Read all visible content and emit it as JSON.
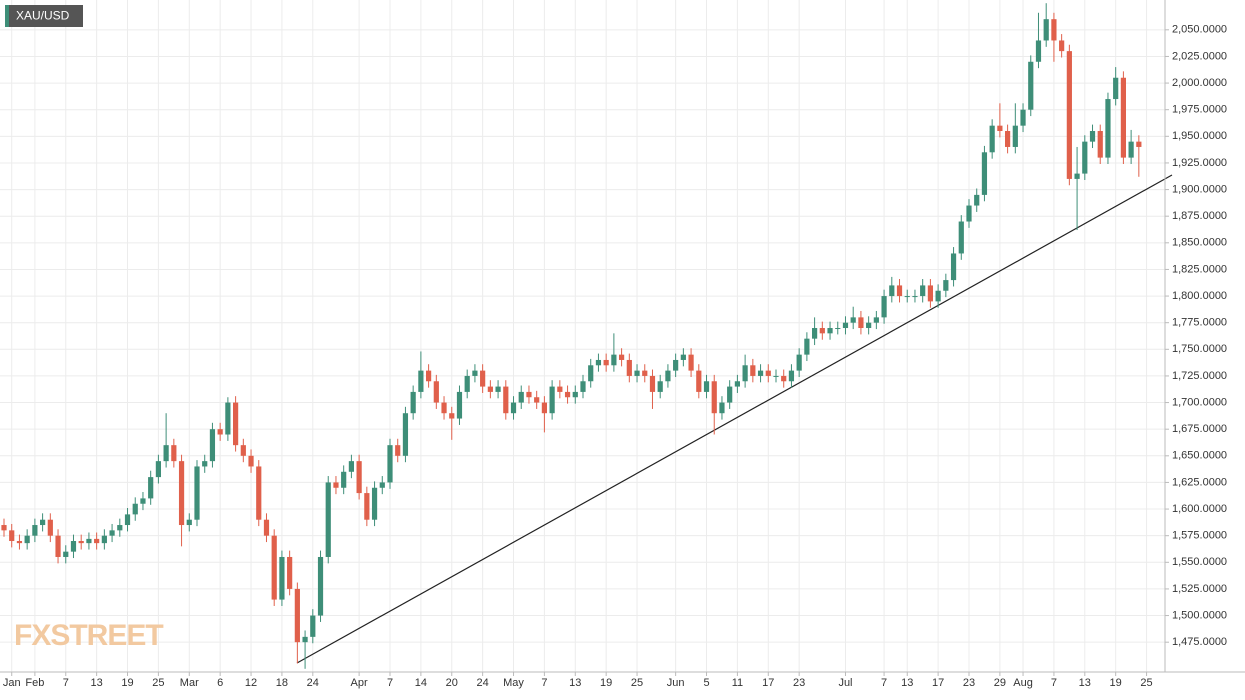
{
  "chart_data": {
    "type": "candlestick",
    "title": "XAU/USD",
    "watermark": "FXSTREET",
    "up_color": "#3e8e78",
    "down_color": "#e0604b",
    "grid": true,
    "open": [
      1585,
      1580,
      1570,
      1568,
      1575,
      1585,
      1590,
      1575,
      1555,
      1560,
      1570,
      1568,
      1572,
      1568,
      1575,
      1580,
      1585,
      1595,
      1605,
      1610,
      1630,
      1645,
      1660,
      1645,
      1585,
      1590,
      1640,
      1645,
      1675,
      1670,
      1700,
      1660,
      1650,
      1640,
      1590,
      1575,
      1515,
      1555,
      1525,
      1475,
      1480,
      1500,
      1555,
      1625,
      1620,
      1635,
      1645,
      1615,
      1590,
      1620,
      1625,
      1660,
      1650,
      1690,
      1710,
      1730,
      1720,
      1700,
      1690,
      1685,
      1710,
      1725,
      1730,
      1715,
      1710,
      1715,
      1690,
      1700,
      1710,
      1705,
      1700,
      1690,
      1715,
      1710,
      1705,
      1710,
      1720,
      1735,
      1740,
      1735,
      1745,
      1740,
      1725,
      1730,
      1725,
      1710,
      1720,
      1730,
      1740,
      1745,
      1730,
      1710,
      1720,
      1690,
      1700,
      1715,
      1720,
      1735,
      1725,
      1730,
      1725,
      1725,
      1720,
      1730,
      1745,
      1760,
      1770,
      1765,
      1770,
      1770,
      1775,
      1780,
      1770,
      1775,
      1780,
      1800,
      1810,
      1800,
      1800,
      1800,
      1810,
      1795,
      1805,
      1815,
      1840,
      1870,
      1885,
      1895,
      1935,
      1960,
      1955,
      1940,
      1960,
      1975,
      2020,
      2040,
      2060,
      2040,
      2030,
      1910,
      1915,
      1945,
      1955,
      1930,
      1985,
      2005,
      1930,
      1945
    ],
    "high": [
      1591,
      1586,
      1576,
      1581,
      1591,
      1596,
      1596,
      1581,
      1566,
      1576,
      1576,
      1578,
      1578,
      1581,
      1586,
      1591,
      1601,
      1611,
      1616,
      1636,
      1651,
      1690,
      1666,
      1651,
      1596,
      1646,
      1651,
      1681,
      1681,
      1705,
      1706,
      1666,
      1656,
      1646,
      1596,
      1581,
      1561,
      1561,
      1531,
      1486,
      1506,
      1561,
      1631,
      1631,
      1641,
      1651,
      1651,
      1621,
      1626,
      1631,
      1666,
      1666,
      1696,
      1716,
      1748,
      1736,
      1726,
      1706,
      1696,
      1716,
      1731,
      1736,
      1736,
      1721,
      1721,
      1721,
      1706,
      1716,
      1716,
      1711,
      1706,
      1721,
      1721,
      1716,
      1716,
      1726,
      1741,
      1746,
      1746,
      1765,
      1751,
      1746,
      1736,
      1736,
      1731,
      1726,
      1736,
      1746,
      1751,
      1751,
      1736,
      1726,
      1726,
      1706,
      1721,
      1726,
      1745,
      1741,
      1736,
      1736,
      1731,
      1731,
      1736,
      1751,
      1766,
      1780,
      1776,
      1776,
      1776,
      1781,
      1790,
      1786,
      1781,
      1786,
      1806,
      1818,
      1816,
      1806,
      1806,
      1816,
      1816,
      1811,
      1821,
      1846,
      1876,
      1891,
      1901,
      1941,
      1966,
      1981,
      1961,
      1981,
      1981,
      2026,
      2066,
      2075,
      2066,
      2046,
      2036,
      1940,
      1951,
      1961,
      1961,
      1991,
      2015,
      2011,
      1956,
      1951
    ],
    "low": [
      1574,
      1564,
      1562,
      1562,
      1569,
      1579,
      1569,
      1549,
      1549,
      1554,
      1562,
      1562,
      1562,
      1562,
      1569,
      1574,
      1579,
      1589,
      1599,
      1604,
      1624,
      1639,
      1639,
      1565,
      1579,
      1584,
      1634,
      1639,
      1664,
      1664,
      1654,
      1644,
      1634,
      1584,
      1569,
      1509,
      1509,
      1519,
      1455,
      1450,
      1474,
      1494,
      1549,
      1614,
      1614,
      1629,
      1609,
      1584,
      1584,
      1614,
      1619,
      1644,
      1644,
      1684,
      1704,
      1714,
      1694,
      1684,
      1665,
      1679,
      1704,
      1719,
      1709,
      1704,
      1704,
      1684,
      1684,
      1694,
      1699,
      1694,
      1672,
      1684,
      1704,
      1699,
      1699,
      1704,
      1714,
      1729,
      1729,
      1729,
      1734,
      1719,
      1719,
      1719,
      1694,
      1704,
      1714,
      1724,
      1734,
      1724,
      1704,
      1704,
      1670,
      1684,
      1694,
      1709,
      1714,
      1719,
      1719,
      1719,
      1719,
      1714,
      1714,
      1724,
      1739,
      1754,
      1759,
      1759,
      1764,
      1764,
      1769,
      1764,
      1764,
      1769,
      1774,
      1794,
      1794,
      1794,
      1794,
      1794,
      1789,
      1789,
      1799,
      1809,
      1834,
      1864,
      1879,
      1889,
      1929,
      1949,
      1934,
      1934,
      1954,
      1969,
      2014,
      2034,
      2020,
      2024,
      1904,
      1862,
      1909,
      1939,
      1924,
      1924,
      1979,
      1924,
      1924,
      1912
    ],
    "close": [
      1580,
      1570,
      1568,
      1575,
      1585,
      1590,
      1575,
      1555,
      1560,
      1570,
      1568,
      1572,
      1568,
      1575,
      1580,
      1585,
      1595,
      1605,
      1610,
      1630,
      1645,
      1660,
      1645,
      1585,
      1590,
      1640,
      1645,
      1675,
      1670,
      1700,
      1660,
      1650,
      1640,
      1590,
      1575,
      1515,
      1555,
      1525,
      1475,
      1480,
      1500,
      1555,
      1625,
      1620,
      1635,
      1645,
      1615,
      1590,
      1620,
      1625,
      1660,
      1650,
      1690,
      1710,
      1730,
      1720,
      1700,
      1690,
      1685,
      1710,
      1725,
      1730,
      1715,
      1710,
      1715,
      1690,
      1700,
      1710,
      1705,
      1700,
      1690,
      1715,
      1710,
      1705,
      1710,
      1720,
      1735,
      1740,
      1735,
      1745,
      1740,
      1725,
      1730,
      1725,
      1710,
      1720,
      1730,
      1740,
      1745,
      1730,
      1710,
      1720,
      1690,
      1700,
      1715,
      1720,
      1735,
      1725,
      1730,
      1725,
      1725,
      1720,
      1730,
      1745,
      1760,
      1770,
      1765,
      1770,
      1770,
      1775,
      1780,
      1770,
      1775,
      1780,
      1800,
      1810,
      1800,
      1800,
      1800,
      1810,
      1795,
      1805,
      1815,
      1840,
      1870,
      1885,
      1895,
      1935,
      1960,
      1955,
      1940,
      1960,
      1975,
      2020,
      2040,
      2060,
      2040,
      2030,
      1910,
      1915,
      1945,
      1955,
      1930,
      1985,
      2005,
      1930,
      1945,
      1940
    ],
    "xticks": [
      {
        "value": 1,
        "label": "Jan"
      },
      {
        "value": 4,
        "label": "Feb"
      },
      {
        "value": 8,
        "label": "7"
      },
      {
        "value": 12,
        "label": "13"
      },
      {
        "value": 16,
        "label": "19"
      },
      {
        "value": 20,
        "label": "25"
      },
      {
        "value": 24,
        "label": "Mar"
      },
      {
        "value": 28,
        "label": "6"
      },
      {
        "value": 32,
        "label": "12"
      },
      {
        "value": 36,
        "label": "18"
      },
      {
        "value": 40,
        "label": "24"
      },
      {
        "value": 46,
        "label": "Apr"
      },
      {
        "value": 50,
        "label": "7"
      },
      {
        "value": 54,
        "label": "14"
      },
      {
        "value": 58,
        "label": "20"
      },
      {
        "value": 62,
        "label": "24"
      },
      {
        "value": 66,
        "label": "May"
      },
      {
        "value": 70,
        "label": "7"
      },
      {
        "value": 74,
        "label": "13"
      },
      {
        "value": 78,
        "label": "19"
      },
      {
        "value": 82,
        "label": "25"
      },
      {
        "value": 87,
        "label": "Jun"
      },
      {
        "value": 91,
        "label": "5"
      },
      {
        "value": 95,
        "label": "11"
      },
      {
        "value": 99,
        "label": "17"
      },
      {
        "value": 103,
        "label": "23"
      },
      {
        "value": 109,
        "label": "Jul"
      },
      {
        "value": 114,
        "label": "7"
      },
      {
        "value": 117,
        "label": "13"
      },
      {
        "value": 121,
        "label": "17"
      },
      {
        "value": 125,
        "label": "23"
      },
      {
        "value": 129,
        "label": "29"
      },
      {
        "value": 132,
        "label": "Aug"
      },
      {
        "value": 136,
        "label": "7"
      },
      {
        "value": 140,
        "label": "13"
      },
      {
        "value": 144,
        "label": "19"
      },
      {
        "value": 148,
        "label": "25"
      }
    ],
    "ylim": [
      1447,
      2078
    ],
    "yticks": [
      {
        "value": 1475,
        "label": "1,475.0000"
      },
      {
        "value": 1500,
        "label": "1,500.0000"
      },
      {
        "value": 1525,
        "label": "1,525.0000"
      },
      {
        "value": 1550,
        "label": "1,550.0000"
      },
      {
        "value": 1575,
        "label": "1,575.0000"
      },
      {
        "value": 1600,
        "label": "1,600.0000"
      },
      {
        "value": 1625,
        "label": "1,625.0000"
      },
      {
        "value": 1650,
        "label": "1,650.0000"
      },
      {
        "value": 1675,
        "label": "1,675.0000"
      },
      {
        "value": 1700,
        "label": "1,700.0000"
      },
      {
        "value": 1725,
        "label": "1,725.0000"
      },
      {
        "value": 1750,
        "label": "1,750.0000"
      },
      {
        "value": 1775,
        "label": "1,775.0000"
      },
      {
        "value": 1800,
        "label": "1,800.0000"
      },
      {
        "value": 1825,
        "label": "1,825.0000"
      },
      {
        "value": 1850,
        "label": "1,850.0000"
      },
      {
        "value": 1875,
        "label": "1,875.0000"
      },
      {
        "value": 1900,
        "label": "1,900.0000"
      },
      {
        "value": 1925,
        "label": "1,925.0000"
      },
      {
        "value": 1950,
        "label": "1,950.0000"
      },
      {
        "value": 1975,
        "label": "1,975.0000"
      },
      {
        "value": 2000,
        "label": "2,000.0000"
      },
      {
        "value": 2025,
        "label": "2,025.0000"
      },
      {
        "value": 2050,
        "label": "2,050.0000"
      }
    ]
  }
}
